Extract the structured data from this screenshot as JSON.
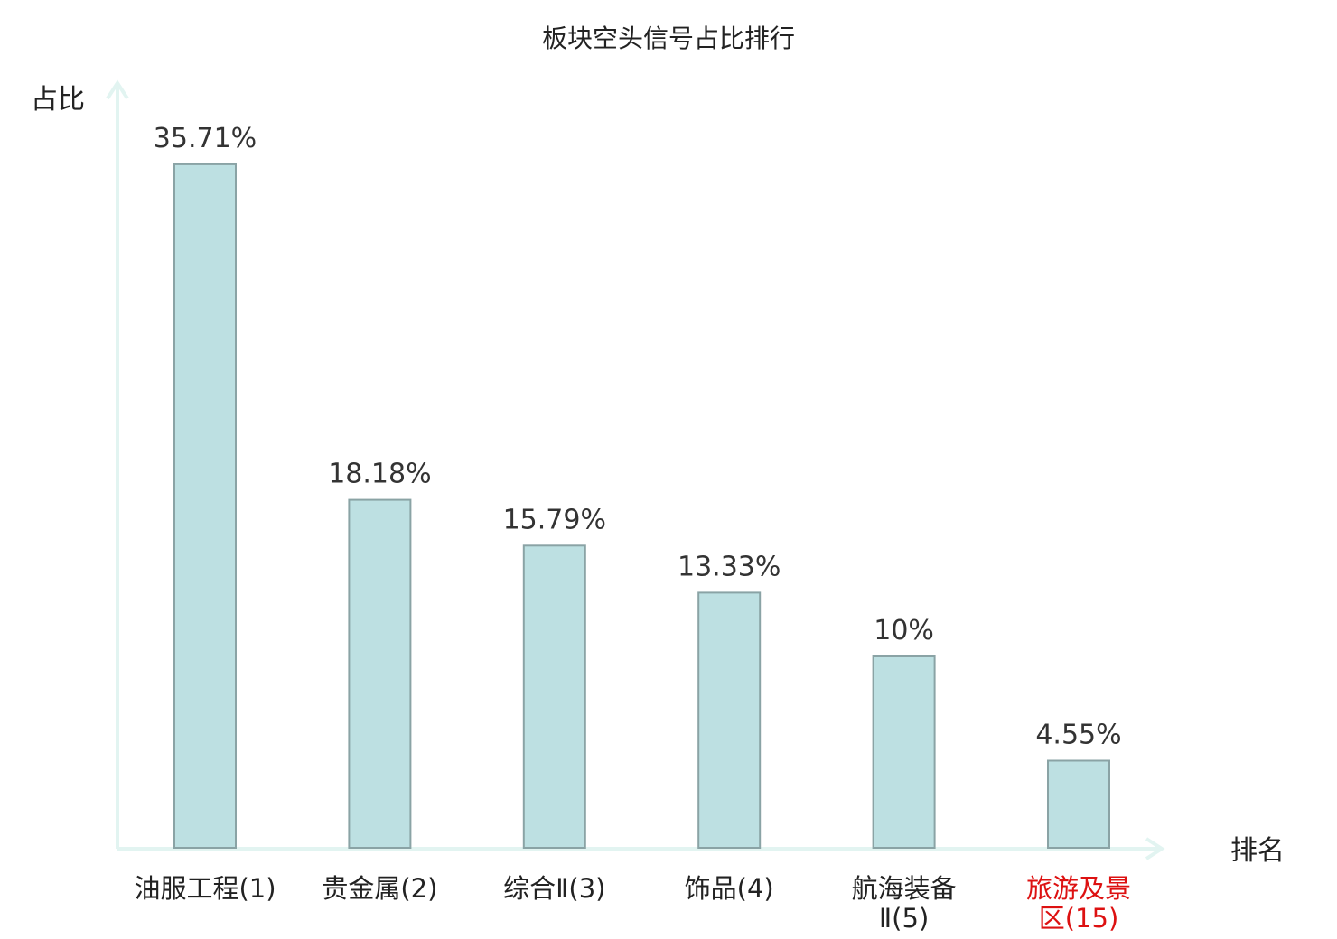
{
  "chart_data": {
    "type": "bar",
    "title": "板块空头信号占比排行",
    "xlabel": "排名",
    "ylabel": "占比",
    "categories": [
      [
        "油服工程(1)"
      ],
      [
        "贵金属(2)"
      ],
      [
        "综合Ⅱ(3)"
      ],
      [
        "饰品(4)"
      ],
      [
        "航海装备",
        "Ⅱ(5)"
      ],
      [
        "旅游及景",
        "区(15)"
      ]
    ],
    "values": [
      35.71,
      18.18,
      15.79,
      13.33,
      10,
      4.55
    ],
    "value_labels": [
      "35.71%",
      "18.18%",
      "15.79%",
      "13.33%",
      "10%",
      "4.55%"
    ],
    "highlight_index": 5,
    "ylim": [
      0,
      36
    ],
    "grid": false,
    "legend": "none"
  },
  "colors": {
    "bar_fill": "#bde0e2",
    "bar_stroke": "#8aa3a5",
    "axis": "#e2f4f1",
    "text": "#333333",
    "highlight": "#dd1111"
  }
}
